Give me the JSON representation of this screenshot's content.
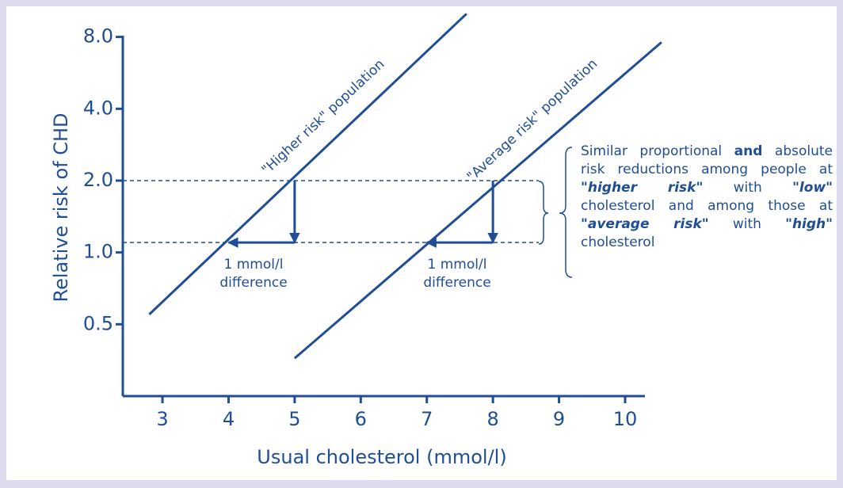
{
  "chart_data": {
    "type": "line",
    "yscale": "log",
    "xlabel": "Usual cholesterol (mmol/l)",
    "ylabel": "Relative risk of CHD",
    "xlim": [
      2.4,
      10.3
    ],
    "xticks": [
      3,
      4,
      5,
      6,
      7,
      8,
      9,
      10
    ],
    "ylim": [
      0.25,
      8.1
    ],
    "yticks": [
      {
        "value": 8,
        "label": "8.0"
      },
      {
        "value": 4,
        "label": "4.0"
      },
      {
        "value": 2,
        "label": "2.0"
      },
      {
        "value": 1,
        "label": "1.0"
      },
      0.5
    ],
    "color": "#1f4e96",
    "series": [
      {
        "color": "#1f4e96",
        "x": [
          2.8,
          7.6
        ],
        "values": [
          0.55,
          10
        ]
      },
      {
        "color": "#1f4e96",
        "x": [
          5.0,
          10.55
        ],
        "values": [
          0.36,
          7.6
        ]
      }
    ],
    "reference_levels": [
      2,
      1.1
    ],
    "arrows": [
      {
        "x": [
          5,
          5,
          4
        ],
        "y": [
          2,
          1.1,
          1.1
        ]
      },
      {
        "x": [
          8,
          8,
          7
        ],
        "y": [
          2,
          1.1,
          1.1
        ]
      }
    ],
    "annotations": [
      "\"Higher risk\" population",
      "\"Average risk\" population",
      "1 mmol/l",
      "difference",
      "1 mmol/l",
      "difference"
    ],
    "note": [
      "Similar proportional",
      "and",
      "absolute risk reductions among people at",
      "\"higher risk\"",
      "with",
      "\"low\"",
      "cholesterol and among those at",
      "\"average risk\"",
      "with",
      "\"high\"",
      "cholesterol"
    ]
  }
}
